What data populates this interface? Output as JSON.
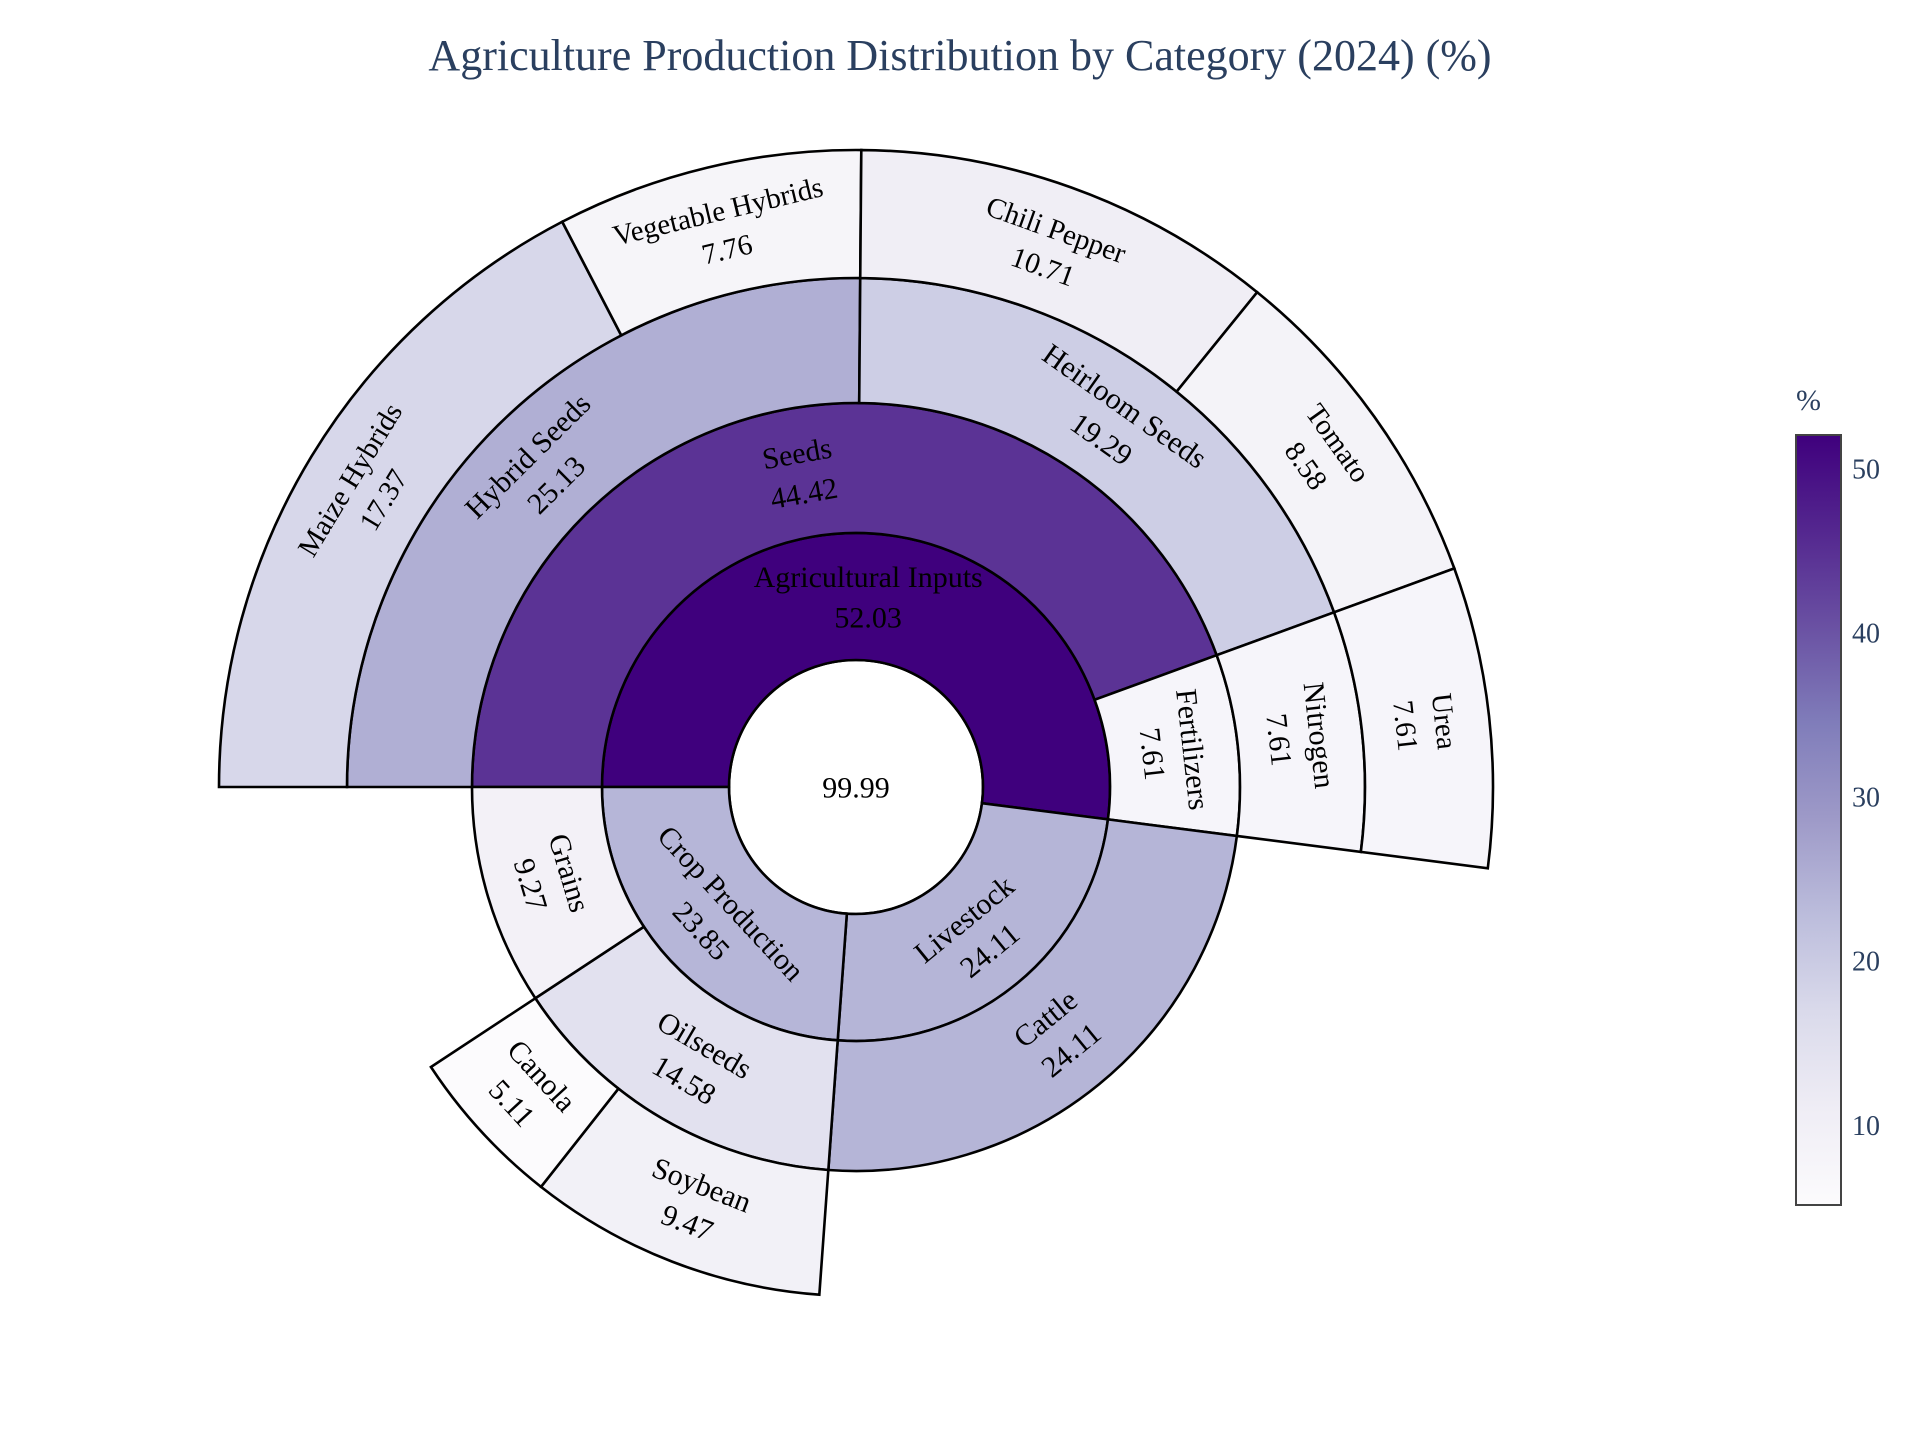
{
  "chart_data": {
    "type": "sunburst",
    "title": "Agriculture Production Distribution by Category (2024) (%)",
    "root": {
      "label": "",
      "value_label": "99.99",
      "value": 99.99,
      "children": [
        {
          "label": "Agricultural Inputs",
          "value_label": "52.03",
          "value": 52.03,
          "children": [
            {
              "label": "Seeds",
              "value_label": "44.42",
              "value": 44.42,
              "children": [
                {
                  "label": "Hybrid Seeds",
                  "value_label": "25.13",
                  "value": 25.13,
                  "children": [
                    {
                      "label": "Maize Hybrids",
                      "value_label": "17.37",
                      "value": 17.37
                    },
                    {
                      "label": "Vegetable Hybrids",
                      "value_label": "7.76",
                      "value": 7.76
                    }
                  ]
                },
                {
                  "label": "Heirloom Seeds",
                  "value_label": "19.29",
                  "value": 19.29,
                  "children": [
                    {
                      "label": "Chili Pepper",
                      "value_label": "10.71",
                      "value": 10.71
                    },
                    {
                      "label": "Tomato",
                      "value_label": "8.58",
                      "value": 8.58
                    }
                  ]
                }
              ]
            },
            {
              "label": "Fertilizers",
              "value_label": "7.61",
              "value": 7.61,
              "children": [
                {
                  "label": "Nitrogen",
                  "value_label": "7.61",
                  "value": 7.61,
                  "children": [
                    {
                      "label": "Urea",
                      "value_label": "7.61",
                      "value": 7.61
                    }
                  ]
                }
              ]
            }
          ]
        },
        {
          "label": "Livestock",
          "value_label": "24.11",
          "value": 24.11,
          "children": [
            {
              "label": "Cattle",
              "value_label": "24.11",
              "value": 24.11
            }
          ]
        },
        {
          "label": "Crop Production",
          "value_label": "23.85",
          "value": 23.85,
          "children": [
            {
              "label": "Oilseeds",
              "value_label": "14.58",
              "value": 14.58,
              "children": [
                {
                  "label": "Soybean",
                  "value_label": "9.47",
                  "value": 9.47
                },
                {
                  "label": "Canola",
                  "value_label": "5.11",
                  "value": 5.11
                }
              ]
            },
            {
              "label": "Grains",
              "value_label": "9.27",
              "value": 9.27
            }
          ]
        }
      ]
    },
    "colorscale": {
      "title": "%",
      "min": 5.11,
      "max": 52.03,
      "ticks": [
        "10",
        "20",
        "30",
        "40",
        "50"
      ],
      "colors": [
        "#fcfbfd",
        "#efedf5",
        "#dadaeb",
        "#bcbddc",
        "#9e9ac8",
        "#807dba",
        "#6a51a3",
        "#54278f",
        "#3f007d"
      ]
    },
    "root_color": "#ffffff"
  }
}
